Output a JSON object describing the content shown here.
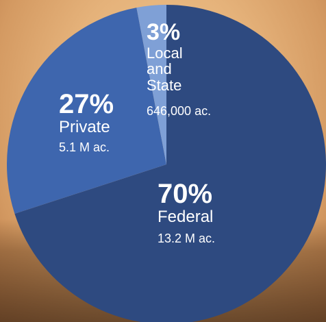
{
  "chart_data": {
    "type": "pie",
    "slices": [
      {
        "label": "Federal",
        "percent": 70,
        "percent_label": "70%",
        "amount": "13.2 M ac.",
        "color": "#2e4a80"
      },
      {
        "label": "Private",
        "percent": 27,
        "percent_label": "27%",
        "amount": "5.1 M ac.",
        "color": "#3e66ae"
      },
      {
        "label": "Local and State",
        "label_lines": [
          "Local",
          "and",
          "State"
        ],
        "percent": 3,
        "percent_label": "3%",
        "amount": "646,000 ac.",
        "color": "#7fa0d6"
      }
    ]
  },
  "colors": {
    "background": "#e5b27a",
    "text": "#ffffff"
  }
}
